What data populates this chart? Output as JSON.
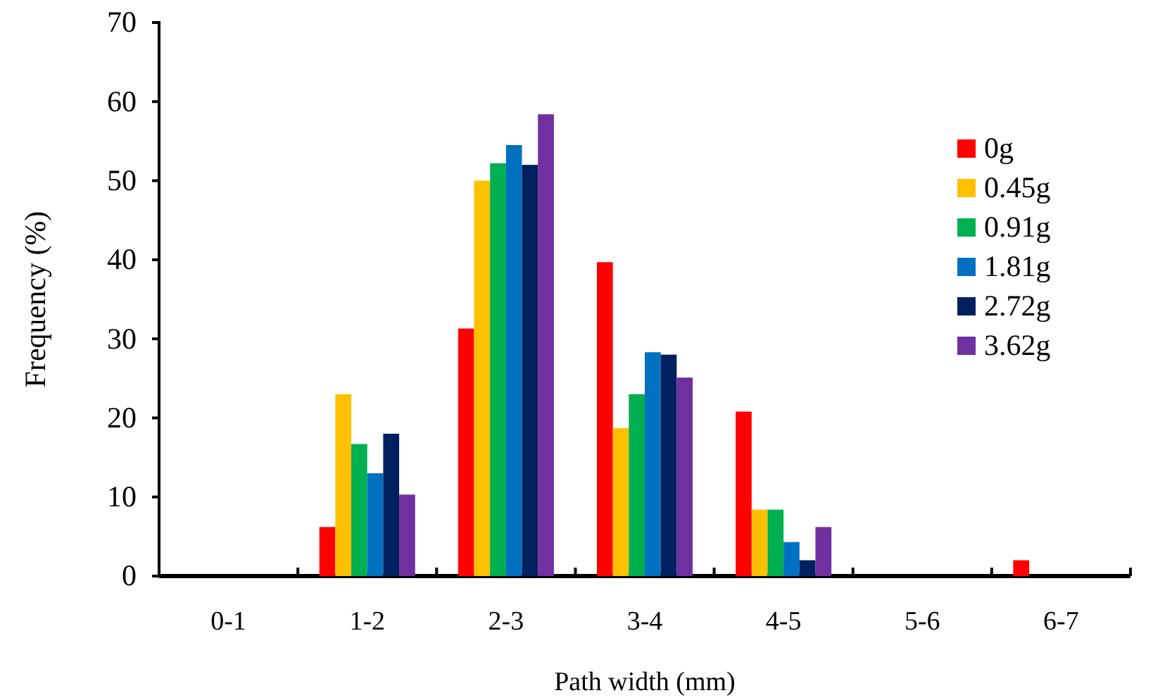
{
  "chart_data": {
    "type": "bar",
    "xlabel": "Path width (mm)",
    "ylabel": "Frequency (%)",
    "categories": [
      "0-1",
      "1-2",
      "2-3",
      "3-4",
      "4-5",
      "5-6",
      "6-7"
    ],
    "series": [
      {
        "name": "0g",
        "color": "#ff0000",
        "values": [
          0,
          6.2,
          31.3,
          39.7,
          20.8,
          0,
          2
        ]
      },
      {
        "name": "0.45g",
        "color": "#ffc000",
        "values": [
          0,
          23,
          50,
          18.7,
          8.4,
          0,
          0
        ]
      },
      {
        "name": "0.91g",
        "color": "#00b050",
        "values": [
          0,
          16.7,
          52.2,
          23,
          8.4,
          0,
          0
        ]
      },
      {
        "name": "1.81g",
        "color": "#0070c0",
        "values": [
          0,
          13,
          54.5,
          28.3,
          4.3,
          0,
          0
        ]
      },
      {
        "name": "2.72g",
        "color": "#002060",
        "values": [
          0,
          18,
          52,
          28,
          2,
          0,
          0
        ]
      },
      {
        "name": "3.62g",
        "color": "#7030a0",
        "values": [
          0,
          10.3,
          58.4,
          25.1,
          6.2,
          0,
          0
        ]
      }
    ],
    "ylim": [
      0,
      70
    ],
    "yticks": [
      0,
      10,
      20,
      30,
      40,
      50,
      60,
      70
    ],
    "grid": false,
    "legend": "right"
  }
}
